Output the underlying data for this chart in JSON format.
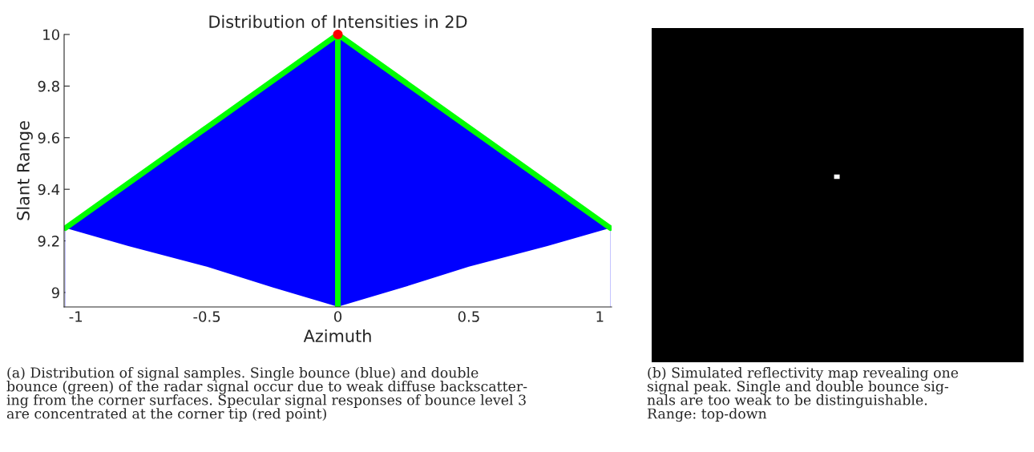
{
  "chart_data": [
    {
      "type": "area",
      "title": "Distribution of Intensities in 2D",
      "xlabel": "Azimuth",
      "ylabel": "Slant Range",
      "xlim": [
        -1.045,
        1.045
      ],
      "ylim": [
        8.944,
        10.0
      ],
      "xticks": [
        -1,
        -0.5,
        0,
        0.5,
        1
      ],
      "yticks": [
        9,
        9.2,
        9.4,
        9.6,
        9.8,
        10
      ],
      "grid": false,
      "series": [
        {
          "type": "area",
          "color": "#0000ff",
          "x": [
            -1.04,
            -0.8,
            -0.5,
            -0.25,
            0,
            0.25,
            0.5,
            0.8,
            1.04
          ],
          "values": [
            9.25,
            9.42,
            9.64,
            9.82,
            10.0,
            9.82,
            9.64,
            9.42,
            9.25
          ]
        },
        {
          "type": "area",
          "color": "#ffffff",
          "x": [
            -1.04,
            -0.8,
            -0.5,
            -0.25,
            0,
            0.25,
            0.5,
            0.8,
            1.04
          ],
          "values": [
            9.25,
            9.18,
            9.1,
            9.02,
            8.945,
            9.02,
            9.1,
            9.18,
            9.25
          ]
        },
        {
          "type": "line",
          "color": "#00ff00",
          "x": [
            -1.04,
            0,
            1.04
          ],
          "values": [
            9.25,
            10.0,
            9.25
          ]
        },
        {
          "type": "scatter",
          "color": "#ff0000",
          "x": [
            0
          ],
          "values": [
            10.0
          ],
          "marker": "circle"
        }
      ],
      "ref_lines": [
        {
          "axis": "x",
          "value": 0,
          "color": "#00ff00"
        }
      ],
      "annotations": [
        "(a) Distribution of signal samples. Single bounce (blue) and double\nbounce (green) of the radar signal occur due to weak diffuse backscatter-\ning from the corner surfaces. Specular signal responses of bounce level 3\nare concentrated at the corner tip (red point)"
      ]
    },
    {
      "type": "other",
      "annotations": [
        "(b) Simulated reflectivity map revealing one\nsignal peak. Single and double bounce sig-\nnals are too weak to be distinguishable.\nRange: top-down"
      ]
    }
  ]
}
